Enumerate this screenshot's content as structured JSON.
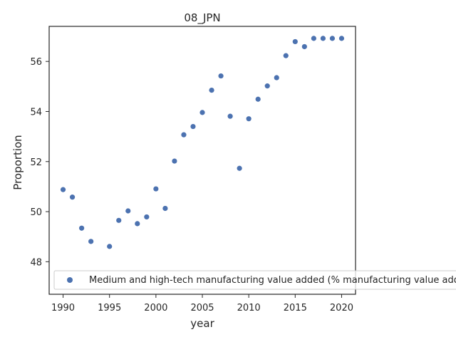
{
  "chart_data": {
    "type": "scatter",
    "title": "08_JPN",
    "xlabel": "year",
    "ylabel": "Proportion",
    "xlim": [
      1988.5,
      2021.5
    ],
    "ylim": [
      46.7,
      57.4
    ],
    "xticks": [
      1990,
      1995,
      2000,
      2005,
      2010,
      2015,
      2020
    ],
    "yticks": [
      48,
      50,
      52,
      54,
      56
    ],
    "grid": false,
    "legend_position": "lower-left",
    "series": [
      {
        "name": "Medium and high-tech manufacturing value added (% manufacturing value added)",
        "color": "#4c72b0",
        "x": [
          1990,
          1991,
          1992,
          1993,
          1995,
          1996,
          1997,
          1998,
          1999,
          2000,
          2001,
          2002,
          2003,
          2004,
          2005,
          2006,
          2007,
          2008,
          2009,
          2010,
          2011,
          2012,
          2013,
          2014,
          2015,
          2016,
          2017,
          2018,
          2019,
          2020
        ],
        "y": [
          50.88,
          50.58,
          49.34,
          48.81,
          48.61,
          49.65,
          50.03,
          49.52,
          49.79,
          50.91,
          50.13,
          52.02,
          53.07,
          53.4,
          53.96,
          54.85,
          55.42,
          53.81,
          51.73,
          53.71,
          54.49,
          55.02,
          55.35,
          56.23,
          56.79,
          56.59,
          56.92,
          56.92,
          56.92,
          56.92
        ]
      }
    ]
  }
}
